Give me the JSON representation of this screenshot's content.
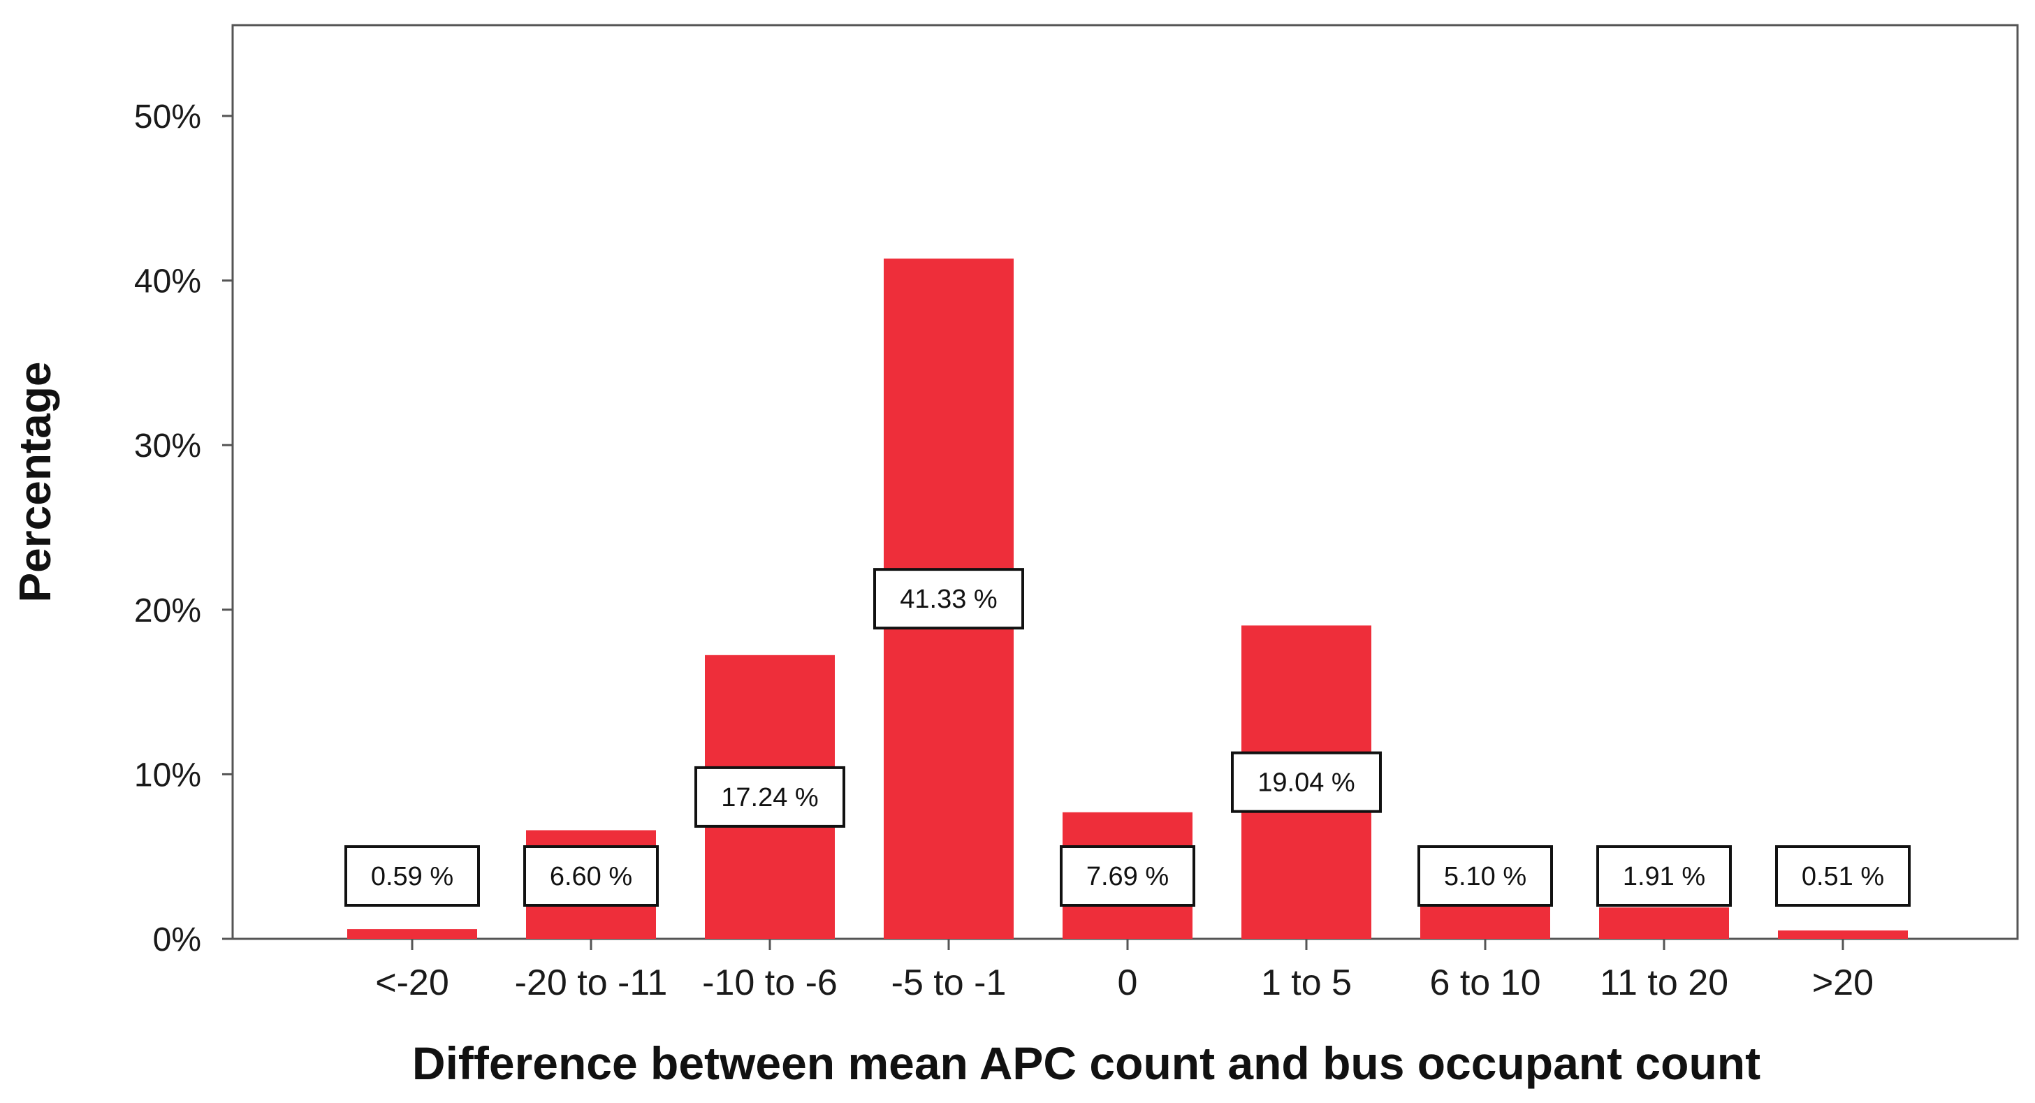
{
  "chart_data": {
    "type": "bar",
    "categories": [
      "<-20",
      "-20 to -11",
      "-10 to -6",
      "-5 to -1",
      "0",
      "1 to 5",
      "6 to 10",
      "11 to 20",
      ">20"
    ],
    "values": [
      0.59,
      6.6,
      17.24,
      41.33,
      7.69,
      19.04,
      5.1,
      1.91,
      0.51
    ],
    "data_labels": [
      "0.59 %",
      "6.60 %",
      "17.24 %",
      "41.33 %",
      "7.69 %",
      "19.04 %",
      "5.10 %",
      "1.91 %",
      "0.51 %"
    ],
    "title": "",
    "xlabel": "Difference between mean APC count and bus occupant count",
    "ylabel": "Percentage",
    "ylim": [
      0,
      50
    ],
    "yticks": [
      "0%",
      "10%",
      "20%",
      "30%",
      "40%",
      "50%"
    ],
    "grid": false,
    "legend": "none",
    "bar_color": "#ee2e3a"
  }
}
